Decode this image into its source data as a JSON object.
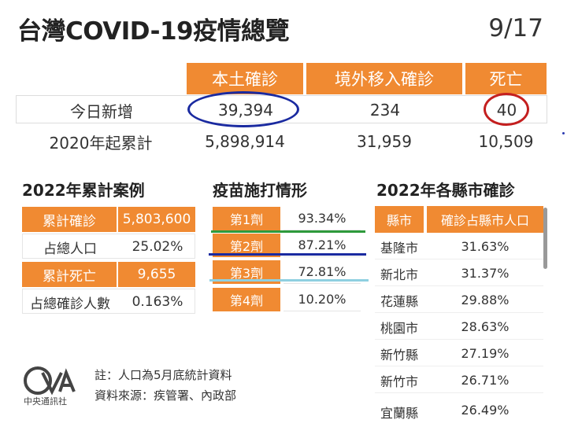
{
  "header": {
    "title": "台灣COVID-19疫情總覽",
    "date": "9/17"
  },
  "summary": {
    "columns": [
      "本土確診",
      "境外移入確診",
      "死亡"
    ],
    "rows": [
      {
        "label": "今日新增",
        "values": [
          "39,394",
          "234",
          "40"
        ]
      },
      {
        "label": "2020年起累計",
        "values": [
          "5,898,914",
          "31,959",
          "10,509"
        ]
      }
    ]
  },
  "cumulative": {
    "title": "2022年累計案例",
    "rows": [
      {
        "label": "累計確診",
        "value": "5,803,600"
      },
      {
        "label": "占總人口",
        "value": "25.02%"
      },
      {
        "label": "累計死亡",
        "value": "9,655"
      },
      {
        "label": "占總確診人數",
        "value": "0.163%"
      }
    ]
  },
  "vaccine": {
    "title": "疫苗施打情形",
    "rows": [
      {
        "label": "第1劑",
        "value": "93.34%"
      },
      {
        "label": "第2劑",
        "value": "87.21%"
      },
      {
        "label": "第3劑",
        "value": "72.81%"
      },
      {
        "label": "第4劑",
        "value": "10.20%"
      }
    ]
  },
  "counties": {
    "title": "2022年各縣市確診",
    "columns": [
      "縣市",
      "確診占縣市人口"
    ],
    "rows": [
      {
        "name": "基隆市",
        "pct": "31.63%"
      },
      {
        "name": "新北市",
        "pct": "31.37%"
      },
      {
        "name": "花蓮縣",
        "pct": "29.88%"
      },
      {
        "name": "桃園市",
        "pct": "28.63%"
      },
      {
        "name": "新竹縣",
        "pct": "27.19%"
      },
      {
        "name": "新竹市",
        "pct": "26.71%"
      },
      {
        "name": "宜蘭縣",
        "pct": "26.49%"
      }
    ]
  },
  "footer": {
    "logo_text": "中央通訊社",
    "note1": "註：人口為5月底統計資料",
    "note2": "資料來源：疾管署、內政部"
  },
  "colors": {
    "accent": "#f08a32",
    "blue_mark": "#1a2aa0",
    "red_mark": "#c41f1f",
    "green_mark": "#2e9a3c",
    "cyan_mark": "#8fd0e0"
  }
}
